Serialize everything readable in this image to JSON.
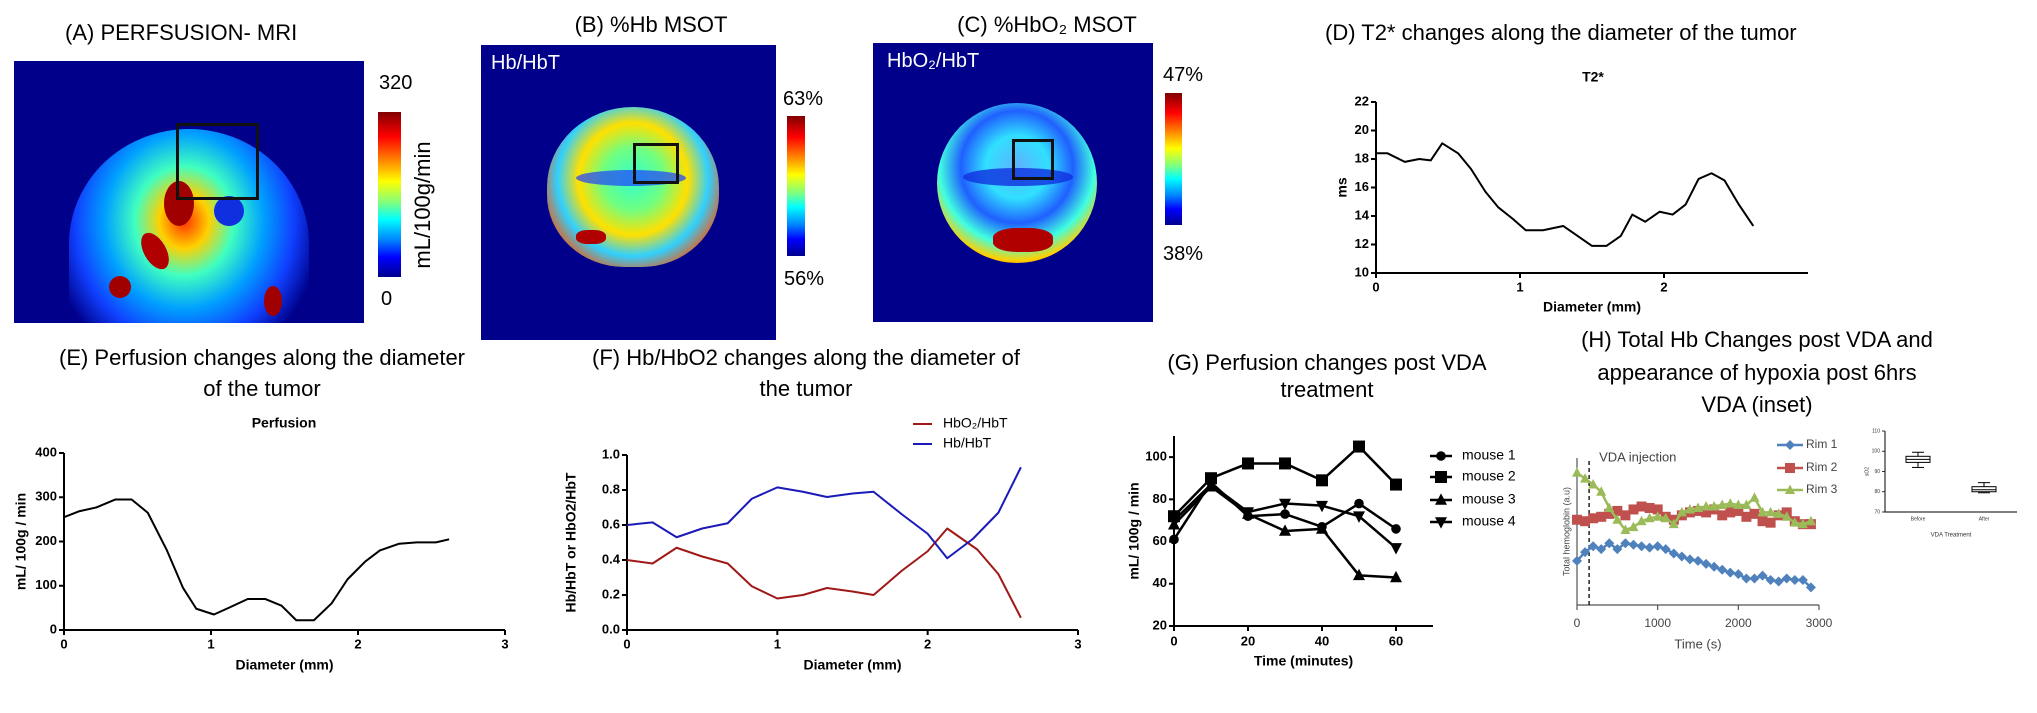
{
  "panels": {
    "a": {
      "title": "(A) PERFSUSION- MRI",
      "colorbar_max": "320",
      "colorbar_min": "0",
      "colorbar_label": "mL/100g/min"
    },
    "b": {
      "title": "(B) %Hb MSOT",
      "overlay": "Hb/HbT",
      "colorbar_max": "63%",
      "colorbar_min": "56%"
    },
    "c": {
      "title": "(C) %HbO₂ MSOT",
      "overlay": "HbO₂/HbT",
      "colorbar_max": "47%",
      "colorbar_min": "38%"
    },
    "d": {
      "title": "(D) T2* changes along the diameter of the tumor"
    },
    "e": {
      "title_line1": "(E) Perfusion changes along the diameter",
      "title_line2": "of the tumor"
    },
    "f": {
      "title_line1": "(F) Hb/HbO2 changes along the diameter of",
      "title_line2": "the tumor"
    },
    "g": {
      "title_line1": "(G) Perfusion changes post VDA",
      "title_line2": "treatment"
    },
    "h": {
      "title_line1": "(H) Total Hb Changes post VDA and",
      "title_line2": "appearance of hypoxia post 6hrs",
      "title_line3": "VDA (inset)"
    }
  },
  "colors": {
    "black": "#000000",
    "hbo2": "#a01818",
    "hb": "#1a1ab8",
    "rim1": "#4f81bd",
    "rim2": "#c0504d",
    "rim3": "#9bbb59"
  },
  "chart_data": [
    {
      "type": "line",
      "title": "T2*",
      "xlabel": "Diameter (mm)",
      "ylabel": "ms",
      "xlim": [
        0,
        3
      ],
      "ylim": [
        10,
        22
      ],
      "xticks": [
        0,
        1,
        2
      ],
      "xtick_labels": [
        "0",
        "1",
        "2"
      ],
      "yticks": [
        10,
        12,
        14,
        16,
        18,
        20,
        22
      ],
      "ytick_labels": [
        "10",
        "12",
        "14",
        "16",
        "18",
        "20",
        "22"
      ],
      "series": [
        {
          "name": "T2*",
          "color": "#000000",
          "x": [
            0,
            0.08,
            0.2,
            0.3,
            0.38,
            0.46,
            0.57,
            0.66,
            0.76,
            0.85,
            0.95,
            1.04,
            1.16,
            1.3,
            1.4,
            1.5,
            1.6,
            1.7,
            1.78,
            1.87,
            1.97,
            2.06,
            2.15,
            2.24,
            2.33,
            2.42,
            2.52,
            2.62
          ],
          "y": [
            18.4,
            18.4,
            17.8,
            18.0,
            17.9,
            19.1,
            18.4,
            17.3,
            15.7,
            14.6,
            13.8,
            13.0,
            13.0,
            13.3,
            12.6,
            11.9,
            11.9,
            12.6,
            14.1,
            13.6,
            14.3,
            14.1,
            14.8,
            16.6,
            17.0,
            16.5,
            14.8,
            13.3
          ]
        }
      ]
    },
    {
      "type": "line",
      "title": "Perfusion",
      "xlabel": "Diameter (mm)",
      "ylabel": "mL/ 100g / min",
      "xlim": [
        0,
        3
      ],
      "ylim": [
        0,
        400
      ],
      "xticks": [
        0,
        1,
        2,
        3
      ],
      "xtick_labels": [
        "0",
        "1",
        "2",
        "3"
      ],
      "yticks": [
        0,
        100,
        200,
        300,
        400
      ],
      "ytick_labels": [
        "0",
        "100",
        "200",
        "300",
        "400"
      ],
      "series": [
        {
          "name": "Perfusion",
          "color": "#000000",
          "x": [
            0,
            0.1,
            0.22,
            0.35,
            0.46,
            0.57,
            0.7,
            0.81,
            0.9,
            1.02,
            1.12,
            1.25,
            1.37,
            1.48,
            1.58,
            1.7,
            1.82,
            1.93,
            2.05,
            2.15,
            2.28,
            2.4,
            2.53,
            2.62
          ],
          "y": [
            255,
            268,
            277,
            295,
            295,
            265,
            180,
            95,
            48,
            35,
            50,
            70,
            70,
            55,
            22,
            22,
            60,
            115,
            155,
            180,
            195,
            198,
            198,
            205
          ]
        }
      ]
    },
    {
      "type": "line",
      "title": "",
      "xlabel": "Diameter (mm)",
      "ylabel": "Hb/HbT or HbO2/HbT",
      "xlim": [
        0,
        3
      ],
      "ylim": [
        0,
        1
      ],
      "xticks": [
        0,
        1,
        2,
        3
      ],
      "xtick_labels": [
        "0",
        "1",
        "2",
        "3"
      ],
      "yticks": [
        0,
        0.2,
        0.4,
        0.6,
        0.8,
        1.0
      ],
      "ytick_labels": [
        "0.0",
        "0.2",
        "0.4",
        "0.6",
        "0.8",
        "1.0"
      ],
      "legend": "top-right",
      "series": [
        {
          "name": "HbO₂/HbT",
          "color": "#a01818",
          "x": [
            0,
            0.17,
            0.33,
            0.5,
            0.67,
            0.83,
            1.0,
            1.17,
            1.33,
            1.5,
            1.64,
            1.83,
            2.0,
            2.13,
            2.33,
            2.47,
            2.62
          ],
          "y": [
            0.4,
            0.38,
            0.47,
            0.42,
            0.38,
            0.25,
            0.18,
            0.2,
            0.24,
            0.22,
            0.2,
            0.34,
            0.45,
            0.58,
            0.46,
            0.32,
            0.07
          ]
        },
        {
          "name": "Hb/HbT",
          "color": "#1a1ab8",
          "x": [
            0,
            0.17,
            0.33,
            0.5,
            0.67,
            0.83,
            1.0,
            1.17,
            1.33,
            1.5,
            1.64,
            1.83,
            2.0,
            2.13,
            2.3,
            2.47,
            2.62
          ],
          "y": [
            0.6,
            0.615,
            0.53,
            0.58,
            0.61,
            0.75,
            0.815,
            0.79,
            0.76,
            0.78,
            0.79,
            0.66,
            0.55,
            0.41,
            0.52,
            0.67,
            0.93
          ]
        }
      ]
    },
    {
      "type": "line",
      "title": "",
      "xlabel": "Time (minutes)",
      "ylabel": "mL/ 100g / min",
      "xlim": [
        0,
        70
      ],
      "ylim": [
        20,
        110
      ],
      "xticks": [
        0,
        20,
        40,
        60
      ],
      "xtick_labels": [
        "0",
        "20",
        "40",
        "60"
      ],
      "yticks": [
        20,
        40,
        60,
        80,
        100
      ],
      "ytick_labels": [
        "20",
        "40",
        "60",
        "80",
        "100"
      ],
      "legend": "right",
      "series": [
        {
          "name": "mouse 1",
          "marker": "circle",
          "color": "#000000",
          "x": [
            0,
            10,
            20,
            30,
            40,
            50,
            60
          ],
          "y": [
            61,
            88,
            72,
            73,
            67,
            78,
            66
          ]
        },
        {
          "name": "mouse 2",
          "marker": "square",
          "color": "#000000",
          "x": [
            0,
            10,
            20,
            30,
            40,
            50,
            60
          ],
          "y": [
            72,
            90,
            97,
            97,
            89,
            105,
            87
          ]
        },
        {
          "name": "mouse 3",
          "marker": "triangle-up",
          "color": "#000000",
          "x": [
            0,
            10,
            20,
            30,
            40,
            50,
            60
          ],
          "y": [
            68,
            86,
            73,
            65,
            66,
            44,
            43
          ]
        },
        {
          "name": "mouse 4",
          "marker": "triangle-down",
          "color": "#000000",
          "x": [
            0,
            10,
            20,
            30,
            40,
            50,
            60
          ],
          "y": [
            70,
            87,
            74,
            78,
            77,
            72,
            57
          ]
        }
      ]
    },
    {
      "type": "line",
      "title": "",
      "xlabel": "Time (s)",
      "ylabel": "Total hemoglobin (a.u)",
      "xlim": [
        0,
        3000
      ],
      "ylim": [
        0,
        100
      ],
      "xticks": [
        0,
        1000,
        2000,
        3000
      ],
      "xtick_labels": [
        "0",
        "1000",
        "2000",
        "3000"
      ],
      "yticks": [],
      "ytick_labels": [],
      "annotation": {
        "text": "VDA injection",
        "x": 150
      },
      "legend": "top-right",
      "series": [
        {
          "name": "Rim 1",
          "marker": "diamond",
          "color": "#4f81bd",
          "x": [
            0,
            100,
            200,
            300,
            400,
            500,
            600,
            700,
            800,
            900,
            1000,
            1100,
            1200,
            1300,
            1400,
            1500,
            1600,
            1700,
            1800,
            1900,
            2000,
            2100,
            2200,
            2300,
            2400,
            2500,
            2600,
            2700,
            2800,
            2900
          ],
          "y": [
            30,
            36,
            40,
            38,
            42,
            38,
            42,
            41,
            40,
            39,
            40,
            38,
            35,
            33,
            31,
            30,
            28,
            26,
            24,
            22,
            21,
            18,
            18,
            20,
            17,
            16,
            18,
            17,
            17,
            12
          ]
        },
        {
          "name": "Rim 2",
          "marker": "square",
          "color": "#c0504d",
          "x": [
            0,
            100,
            200,
            300,
            400,
            500,
            600,
            700,
            800,
            900,
            1000,
            1100,
            1200,
            1300,
            1400,
            1500,
            1600,
            1700,
            1800,
            1900,
            2000,
            2100,
            2200,
            2300,
            2400,
            2500,
            2600,
            2700,
            2800,
            2900
          ],
          "y": [
            58,
            57,
            59,
            60,
            62,
            64,
            61,
            65,
            67,
            66,
            65,
            60,
            58,
            61,
            63,
            64,
            63,
            65,
            61,
            63,
            64,
            60,
            62,
            57,
            56,
            61,
            63,
            57,
            55,
            55
          ]
        },
        {
          "name": "Rim 3",
          "marker": "triangle-up",
          "color": "#9bbb59",
          "x": [
            0,
            100,
            200,
            300,
            400,
            500,
            600,
            700,
            800,
            900,
            1000,
            1100,
            1200,
            1300,
            1400,
            1500,
            1600,
            1700,
            1800,
            1900,
            2000,
            2100,
            2200,
            2300,
            2400,
            2500,
            2600,
            2700,
            2800,
            2900
          ],
          "y": [
            90,
            86,
            82,
            77,
            66,
            58,
            51,
            53,
            57,
            59,
            60,
            59,
            55,
            63,
            65,
            66,
            67,
            67,
            68,
            69,
            68,
            68,
            73,
            63,
            63,
            62,
            60,
            56,
            55,
            57
          ]
        }
      ]
    },
    {
      "type": "box",
      "title": "",
      "xlabel": "VDA Treatment",
      "ylabel": "sO2",
      "ylim": [
        70,
        110
      ],
      "yticks": [
        70,
        80,
        90,
        100,
        110
      ],
      "ytick_labels": [
        "70",
        "80",
        "90",
        "100",
        "110"
      ],
      "categories": [
        "Before",
        "After"
      ],
      "boxes": [
        {
          "min": 92,
          "q1": 94.5,
          "median": 96,
          "q3": 97.5,
          "max": 99.5
        },
        {
          "min": 79.5,
          "q1": 80,
          "median": 81,
          "q3": 82.5,
          "max": 84.5
        }
      ]
    }
  ]
}
